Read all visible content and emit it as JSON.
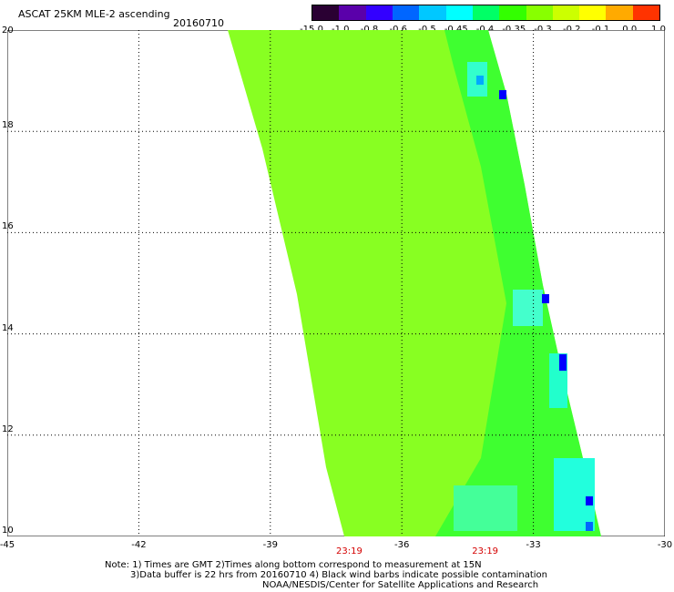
{
  "title": "ASCAT 25KM MLE-2 ascending",
  "date": "20160710",
  "colorbar": {
    "labels": [
      "-15.0",
      "-1.0",
      "-0.8",
      "-0.6",
      "-0.5",
      "-0.45",
      "-0.4",
      "-0.35",
      "-0.3",
      "-0.2",
      "-0.1",
      "0.0",
      "1.0"
    ],
    "colors": [
      "#2a0033",
      "#5a00aa",
      "#3300ff",
      "#0066ff",
      "#00c8ff",
      "#00ffff",
      "#00ff66",
      "#33ff00",
      "#88ff00",
      "#ccff00",
      "#ffff00",
      "#ffaa00",
      "#ff3300"
    ]
  },
  "map": {
    "lon_range": [
      -45,
      -30
    ],
    "lat_range": [
      10,
      20
    ],
    "lon_ticks": [
      "-45",
      "-42",
      "-39",
      "-36",
      "-33",
      "-30"
    ],
    "lat_ticks": [
      "20",
      "18",
      "16",
      "14",
      "12",
      "10"
    ],
    "time_labels": [
      "23:19",
      "23:19"
    ],
    "swath_color": "#88ff22",
    "edge_color": "#22ff44",
    "grid": true
  },
  "notes": [
    "Note: 1) Times are GMT 2)Times along bottom correspond to measurement at 15N",
    "3)Data buffer is 22 hrs from 20160710 4) Black wind barbs indicate possible contamination",
    "NOAA/NESDIS/Center for Satellite Applications and Research"
  ]
}
